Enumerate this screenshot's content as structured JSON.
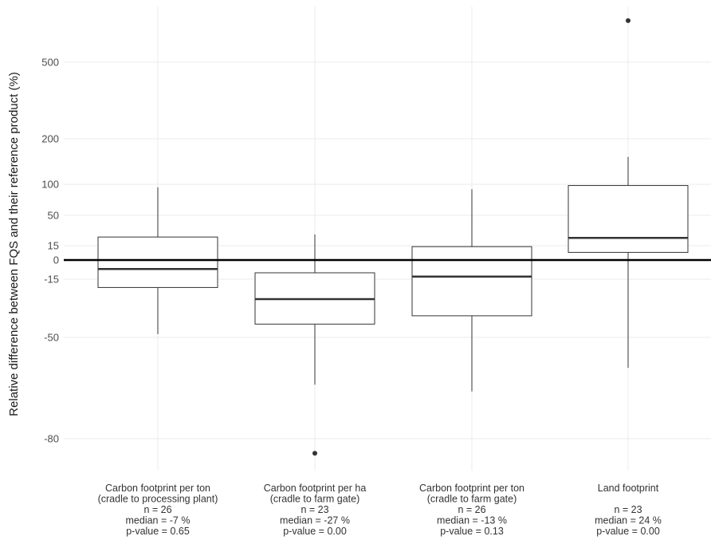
{
  "chart_data": {
    "type": "boxplot",
    "ylabel": "Relative difference between FQS and their reference product (%)",
    "y_scale": "pseudo-log (signed, compressed)",
    "y_ticks": [
      500,
      200,
      100,
      50,
      15,
      0,
      -15,
      -50,
      -80
    ],
    "y_tick_labels": [
      "500",
      "200",
      "100",
      "50",
      "15",
      "0",
      "-15",
      "-50",
      "-80"
    ],
    "ylim": [
      -87,
      800
    ],
    "grid": true,
    "reference_line": 0,
    "categories": [
      {
        "label_lines": [
          "Carbon footprint per ton",
          "(cradle to processing plant)",
          "n =  26",
          "median =  -7 %",
          "p-value =  0.65"
        ],
        "whisker_low": -48,
        "q1": -20,
        "median": -7,
        "q3": 25,
        "whisker_high": 95,
        "outliers": []
      },
      {
        "label_lines": [
          "Carbon footprint per ha",
          "(cradle to farm gate)",
          "n =  23",
          "median =  -27 %",
          "p-value =  0.00"
        ],
        "whisker_low": -64,
        "q1": -42,
        "median": -27,
        "q3": -10,
        "whisker_high": 28,
        "outliers": [
          -84
        ]
      },
      {
        "label_lines": [
          "Carbon footprint per ton",
          "(cradle to farm gate)",
          "n =  26",
          "median =  -13 %",
          "p-value =  0.13"
        ],
        "whisker_low": -66,
        "q1": -37,
        "median": -13,
        "q3": 14,
        "whisker_high": 92,
        "outliers": []
      },
      {
        "label_lines": [
          "Land footprint",
          "",
          "n =  23",
          "median =  24 %",
          "p-value =  0.00"
        ],
        "whisker_low": -59,
        "q1": 8,
        "median": 24,
        "q3": 98,
        "whisker_high": 160,
        "outliers": [
          730
        ]
      }
    ]
  }
}
